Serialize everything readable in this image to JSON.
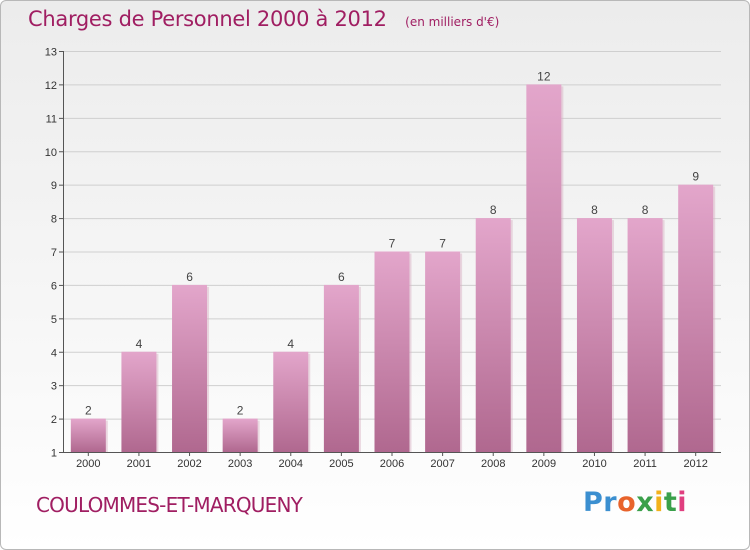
{
  "header": {
    "title": "Charges de Personnel 2000 à 2012",
    "subtitle": "(en milliers d'€)"
  },
  "footer": {
    "commune": "COULOMMES-ET-MARQUENY",
    "logo": "Proxiti"
  },
  "colors": {
    "accent": "#a01e62",
    "bar_top": "#e3a6cb",
    "bar_bottom": "#b0688f"
  },
  "chart_data": {
    "type": "bar",
    "title": "Charges de Personnel 2000 à 2012",
    "subtitle": "(en milliers d'€)",
    "xlabel": "",
    "ylabel": "",
    "categories": [
      "2000",
      "2001",
      "2002",
      "2003",
      "2004",
      "2005",
      "2006",
      "2007",
      "2008",
      "2009",
      "2010",
      "2011",
      "2012"
    ],
    "values": [
      2,
      4,
      6,
      2,
      4,
      6,
      7,
      7,
      8,
      12,
      8,
      8,
      9
    ],
    "ylim": [
      1,
      13
    ],
    "yticks": [
      1,
      2,
      3,
      4,
      5,
      6,
      7,
      8,
      9,
      10,
      11,
      12,
      13
    ],
    "grid": true,
    "data_labels": true
  }
}
